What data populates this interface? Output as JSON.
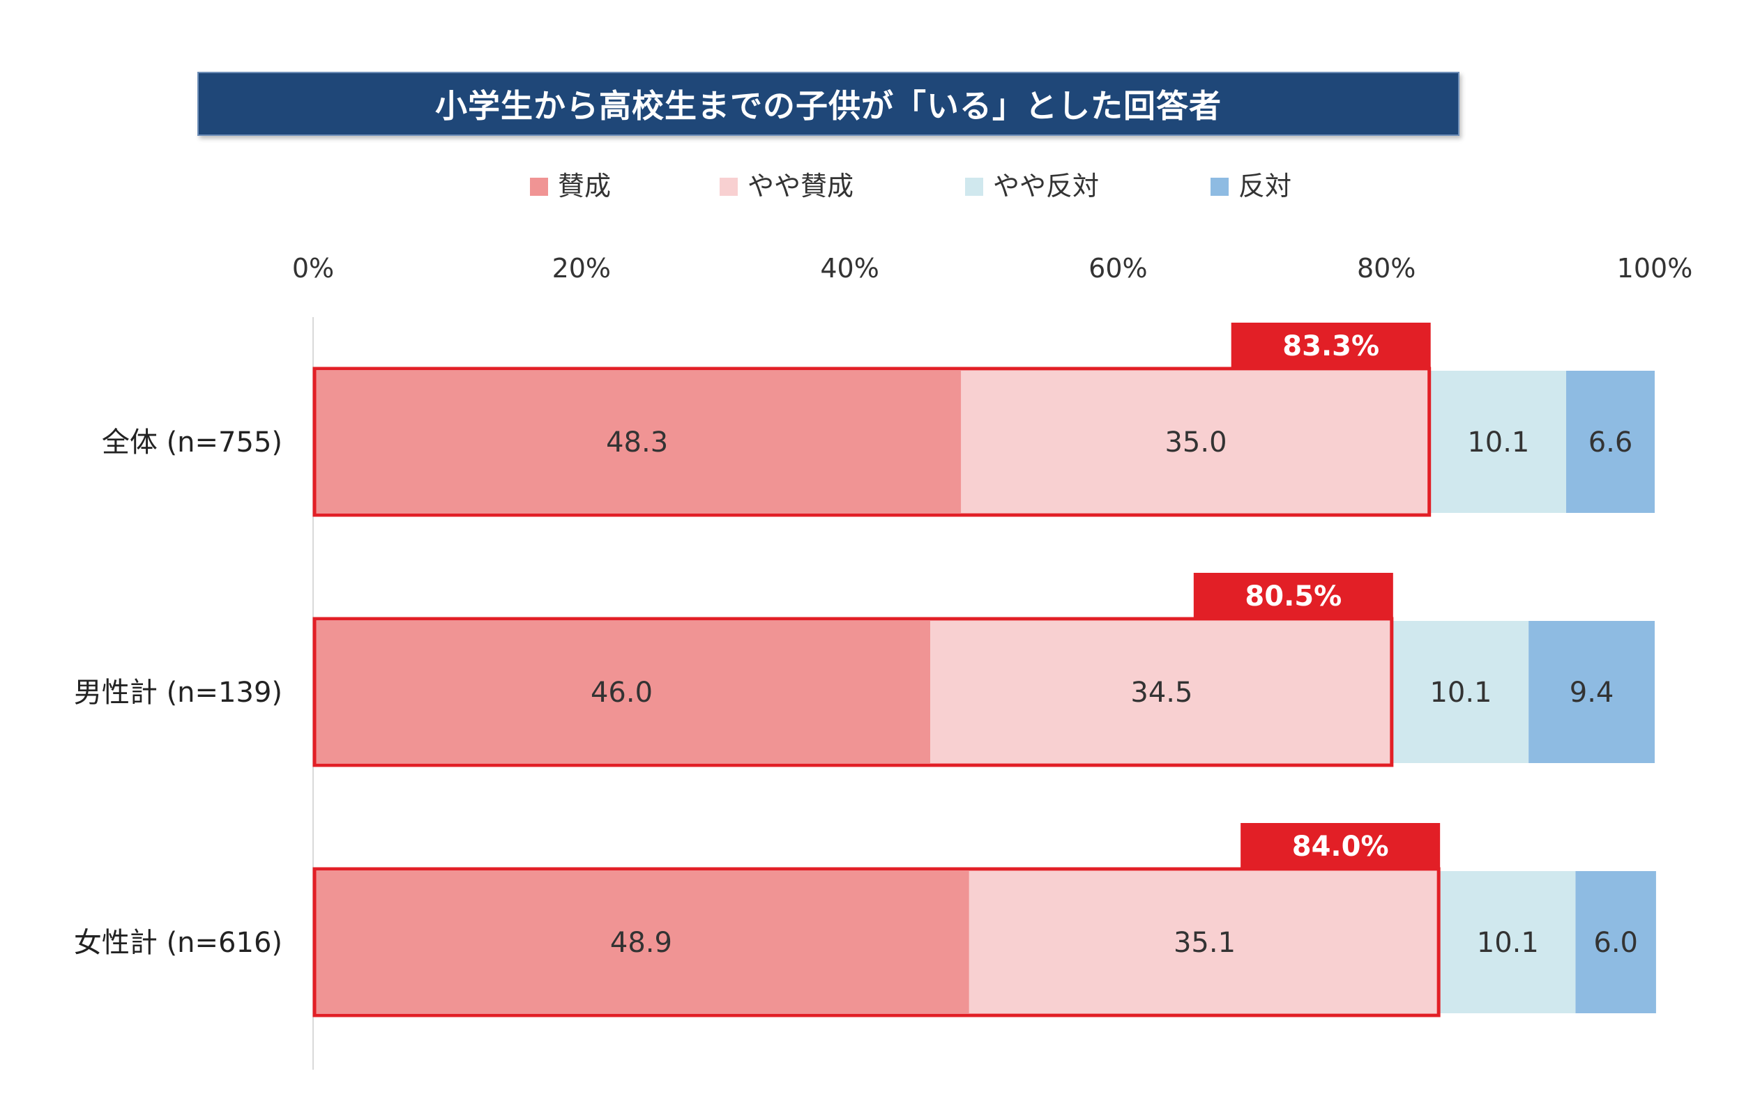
{
  "chart_data": {
    "type": "bar",
    "orientation": "horizontal",
    "stacked": true,
    "title": "小学生から高校生までの子供が「いる」とした回答者",
    "xlim": [
      0,
      100
    ],
    "x_ticks": [
      "0%",
      "20%",
      "40%",
      "60%",
      "80%",
      "100%"
    ],
    "legend_position": "top",
    "categories": [
      "全体 (n=755)",
      "男性計 (n=139)",
      "女性計 (n=616)"
    ],
    "series": [
      {
        "name": "賛成",
        "color": "#f09494",
        "values": [
          48.3,
          46.0,
          48.9
        ],
        "labels": [
          "48.3",
          "46.0",
          "48.9"
        ]
      },
      {
        "name": "やや賛成",
        "color": "#f8d0d1",
        "values": [
          35.0,
          34.5,
          35.1
        ],
        "labels": [
          "35.0",
          "34.5",
          "35.1"
        ]
      },
      {
        "name": "やや反対",
        "color": "#d0e8ee",
        "values": [
          10.1,
          10.1,
          10.1
        ],
        "labels": [
          "10.1",
          "10.1",
          "10.1"
        ]
      },
      {
        "name": "反対",
        "color": "#8ebbe2",
        "values": [
          6.6,
          9.4,
          6.0
        ],
        "labels": [
          "6.6",
          "9.4",
          "6.0"
        ]
      }
    ],
    "totals": [
      {
        "value": 83.3,
        "label": "83.3%"
      },
      {
        "value": 80.5,
        "label": "80.5%"
      },
      {
        "value": 84.0,
        "label": "84.0%"
      }
    ],
    "highlight_color": "#e21f26"
  }
}
